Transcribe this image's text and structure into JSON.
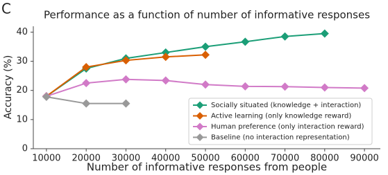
{
  "panel_label": "C",
  "chart_data": {
    "type": "line",
    "title": "Performance as a function of number of informative responses",
    "x_label": "Number of informative responses from people",
    "y_label": "Accuracy (%)",
    "x": [
      10000,
      20000,
      30000,
      40000,
      50000,
      60000,
      70000,
      80000,
      90000
    ],
    "xlim": [
      6700,
      94000
    ],
    "xticks": [
      10000,
      20000,
      30000,
      40000,
      50000,
      60000,
      70000,
      80000,
      90000
    ],
    "ylim": [
      0,
      42
    ],
    "yticks": [
      0,
      10,
      20,
      30,
      40
    ],
    "legend": "lower right",
    "series": [
      {
        "name": "Socially situated (knowledge + interaction)",
        "color": "#1b9e77",
        "values": [
          18,
          27.5,
          31,
          33,
          35,
          36.7,
          38.5,
          39.5,
          null
        ]
      },
      {
        "name": "Active learning (only knowledge reward)",
        "color": "#d95f02",
        "values": [
          18,
          28,
          30.3,
          31.5,
          32.2,
          null,
          null,
          null,
          null
        ]
      },
      {
        "name": "Human preference (only interaction reward)",
        "color": "#d17ac7",
        "values": [
          18,
          22.5,
          23.8,
          23.4,
          22,
          21.4,
          21.3,
          21,
          20.8
        ]
      },
      {
        "name": "Baseline (no interaction representation)",
        "color": "#999999",
        "values": [
          17.8,
          15.5,
          15.5,
          null,
          null,
          null,
          null,
          null,
          null
        ]
      }
    ]
  }
}
